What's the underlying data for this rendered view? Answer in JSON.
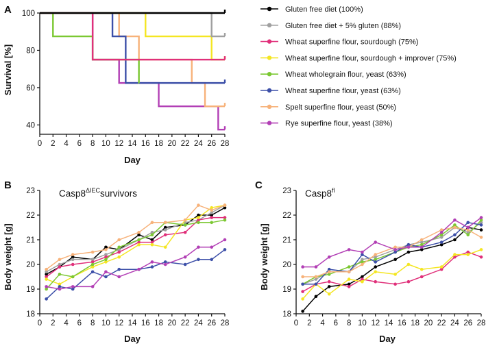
{
  "chart_data": [
    {
      "panel": "A",
      "type": "line",
      "step": true,
      "xlabel": "Day",
      "ylabel": "Survival [%]",
      "xlim": [
        0,
        28
      ],
      "ylim": [
        35,
        100
      ],
      "xticks": [
        0,
        2,
        4,
        6,
        8,
        10,
        12,
        14,
        16,
        18,
        20,
        22,
        24,
        26,
        28
      ],
      "yticks": [
        40,
        60,
        80,
        100
      ],
      "legend_position": "right",
      "series": [
        {
          "name": "Gluten free diet (100%)",
          "color": "#000000",
          "x": [
            0,
            28
          ],
          "y": [
            100,
            100
          ]
        },
        {
          "name": "Gluten free diet + 5% gluten (88%)",
          "color": "#a0a0a0",
          "x": [
            0,
            26,
            28
          ],
          "y": [
            100,
            87.5,
            87.5
          ]
        },
        {
          "name": "Wheat superfine flour, sourdough (75%)",
          "color": "#e0307a",
          "x": [
            0,
            8,
            28
          ],
          "y": [
            100,
            75,
            75
          ]
        },
        {
          "name": "Wheat superfine flour, sourdough + improver (75%)",
          "color": "#f4e622",
          "x": [
            0,
            16,
            26,
            28
          ],
          "y": [
            100,
            87.5,
            75,
            75
          ]
        },
        {
          "name": "Wheat wholegrain flour, yeast (63%)",
          "color": "#7bc832",
          "x": [
            0,
            2,
            8,
            15,
            15.01
          ],
          "y": [
            100,
            87.5,
            75,
            62.5,
            62.5
          ]
        },
        {
          "name": "Wheat superfine flour, yeast (63%)",
          "color": "#3c4fa8",
          "x": [
            0,
            11,
            13,
            28
          ],
          "y": [
            100,
            87.5,
            62.5,
            62.5
          ]
        },
        {
          "name": "Spelt superfine flour, yeast (50%)",
          "color": "#f7b27a",
          "x": [
            0,
            12,
            15,
            23,
            25,
            28
          ],
          "y": [
            100,
            87.5,
            75,
            62.5,
            50,
            50
          ]
        },
        {
          "name": "Rye superfine flour, yeast (38%)",
          "color": "#b23fb5",
          "x": [
            0,
            8,
            12,
            18,
            27,
            28
          ],
          "y": [
            100,
            75,
            62.5,
            50,
            37.5,
            37.5
          ]
        }
      ]
    },
    {
      "panel": "B",
      "type": "line",
      "title": "Casp8",
      "title_sup": "ΔIEC",
      "title_rest": "survivors",
      "xlabel": "Day",
      "ylabel": "Body weight [g]",
      "xlim": [
        0,
        28
      ],
      "ylim": [
        18,
        23
      ],
      "xticks": [
        0,
        2,
        4,
        6,
        8,
        10,
        12,
        14,
        16,
        18,
        20,
        22,
        24,
        26,
        28
      ],
      "yticks": [
        18,
        19,
        20,
        21,
        22,
        23
      ],
      "x": [
        1,
        3,
        5,
        8,
        10,
        12,
        15,
        17,
        19,
        22,
        24,
        26,
        28
      ],
      "series": [
        {
          "name": "Gluten free diet",
          "color": "#000000",
          "values": [
            19.6,
            19.9,
            20.3,
            20.2,
            20.7,
            20.6,
            21.2,
            21.0,
            21.5,
            21.6,
            22.0,
            22.0,
            22.3
          ]
        },
        {
          "name": "Gluten free diet + 5% gluten",
          "color": "#a0a0a0",
          "values": [
            19.7,
            20.0,
            20.2,
            20.2,
            20.4,
            20.6,
            21.0,
            21.3,
            21.4,
            21.7,
            21.8,
            22.1,
            22.4
          ]
        },
        {
          "name": "Wheat superfine flour, sourdough",
          "color": "#e0307a",
          "values": [
            19.5,
            19.9,
            20.0,
            20.1,
            20.3,
            20.5,
            20.9,
            20.9,
            21.2,
            21.3,
            21.8,
            21.9,
            21.9
          ]
        },
        {
          "name": "Wheat superfine flour, sourdough + improver",
          "color": "#f4e622",
          "values": [
            19.4,
            19.2,
            19.5,
            19.9,
            20.1,
            20.3,
            20.8,
            20.8,
            20.7,
            21.8,
            21.9,
            22.3,
            22.4
          ]
        },
        {
          "name": "Wheat wholegrain flour, yeast",
          "color": "#7bc832",
          "values": [
            19.0,
            19.6,
            19.5,
            20.0,
            20.2,
            20.7,
            21.0,
            21.2,
            21.7,
            21.6,
            21.7,
            21.7,
            21.8
          ]
        },
        {
          "name": "Wheat superfine flour, yeast",
          "color": "#3c4fa8",
          "values": [
            18.6,
            19.1,
            19.0,
            19.7,
            19.5,
            19.8,
            19.8,
            19.9,
            20.1,
            20.0,
            20.2,
            20.2,
            20.6
          ]
        },
        {
          "name": "Spelt superfine flour, yeast",
          "color": "#f7b27a",
          "values": [
            19.8,
            20.2,
            20.4,
            20.5,
            20.6,
            21.0,
            21.3,
            21.7,
            21.7,
            21.8,
            22.4,
            22.2,
            22.4
          ]
        },
        {
          "name": "Rye superfine flour, yeast",
          "color": "#b23fb5",
          "values": [
            19.1,
            19.0,
            19.1,
            19.1,
            19.7,
            19.5,
            19.8,
            20.1,
            20.0,
            20.3,
            20.7,
            20.7,
            21.0
          ]
        }
      ]
    },
    {
      "panel": "C",
      "type": "line",
      "title": "Casp8",
      "title_sup": "fl",
      "title_rest": "",
      "xlabel": "Day",
      "ylabel": "Body weight [g]",
      "xlim": [
        0,
        28
      ],
      "ylim": [
        18,
        23
      ],
      "xticks": [
        0,
        2,
        4,
        6,
        8,
        10,
        12,
        14,
        16,
        18,
        20,
        22,
        24,
        26,
        28
      ],
      "yticks": [
        18,
        19,
        20,
        21,
        22,
        23
      ],
      "x": [
        1,
        3,
        5,
        8,
        10,
        12,
        15,
        17,
        19,
        22,
        24,
        26,
        28
      ],
      "series": [
        {
          "name": "Gluten free diet",
          "color": "#000000",
          "values": [
            18.1,
            18.7,
            19.1,
            19.2,
            19.5,
            19.9,
            20.2,
            20.5,
            20.6,
            20.8,
            21.0,
            21.5,
            21.4
          ]
        },
        {
          "name": "Gluten free diet + 5% gluten",
          "color": "#a0a0a0",
          "values": [
            19.2,
            19.4,
            19.7,
            19.7,
            20.2,
            20.3,
            20.6,
            20.8,
            20.9,
            21.1,
            21.5,
            21.3,
            21.7
          ]
        },
        {
          "name": "Wheat superfine flour, sourdough",
          "color": "#e0307a",
          "values": [
            18.9,
            19.2,
            19.3,
            19.1,
            19.4,
            19.3,
            19.2,
            19.3,
            19.5,
            19.8,
            20.3,
            20.5,
            20.3
          ]
        },
        {
          "name": "Wheat superfine flour, sourdough + improver",
          "color": "#f4e622",
          "values": [
            18.6,
            19.2,
            18.8,
            19.4,
            19.3,
            19.7,
            19.6,
            20.0,
            19.8,
            19.9,
            20.4,
            20.4,
            20.6
          ]
        },
        {
          "name": "Wheat wholegrain flour, yeast",
          "color": "#7bc832",
          "values": [
            19.2,
            19.5,
            19.6,
            19.9,
            20.1,
            20.2,
            20.5,
            20.7,
            20.8,
            21.2,
            21.6,
            21.2,
            21.8
          ]
        },
        {
          "name": "Wheat superfine flour, yeast",
          "color": "#3c4fa8",
          "values": [
            19.2,
            19.2,
            19.8,
            19.7,
            20.4,
            20.1,
            20.5,
            20.8,
            20.7,
            20.9,
            21.2,
            21.7,
            21.6
          ]
        },
        {
          "name": "Spelt superfine flour, yeast",
          "color": "#f7b27a",
          "values": [
            19.5,
            19.5,
            19.7,
            19.7,
            20.0,
            20.4,
            20.7,
            20.7,
            21.0,
            21.4,
            21.5,
            21.4,
            21.1
          ]
        },
        {
          "name": "Rye superfine flour, yeast",
          "color": "#b23fb5",
          "values": [
            19.9,
            19.9,
            20.3,
            20.6,
            20.5,
            20.9,
            20.6,
            20.7,
            20.7,
            21.3,
            21.8,
            21.5,
            21.9
          ]
        }
      ]
    }
  ],
  "panels": {
    "a": {
      "label": "A",
      "xlabel": "Day",
      "ylabel": "Survival [%]"
    },
    "b": {
      "label": "B",
      "xlabel": "Day",
      "ylabel": "Body weight [g]",
      "title_main": "Casp8",
      "title_sup": "ΔIEC",
      "title_rest": "survivors"
    },
    "c": {
      "label": "C",
      "xlabel": "Day",
      "ylabel": "Body weight [g]",
      "title_main": "Casp8",
      "title_sup": "fl"
    }
  }
}
